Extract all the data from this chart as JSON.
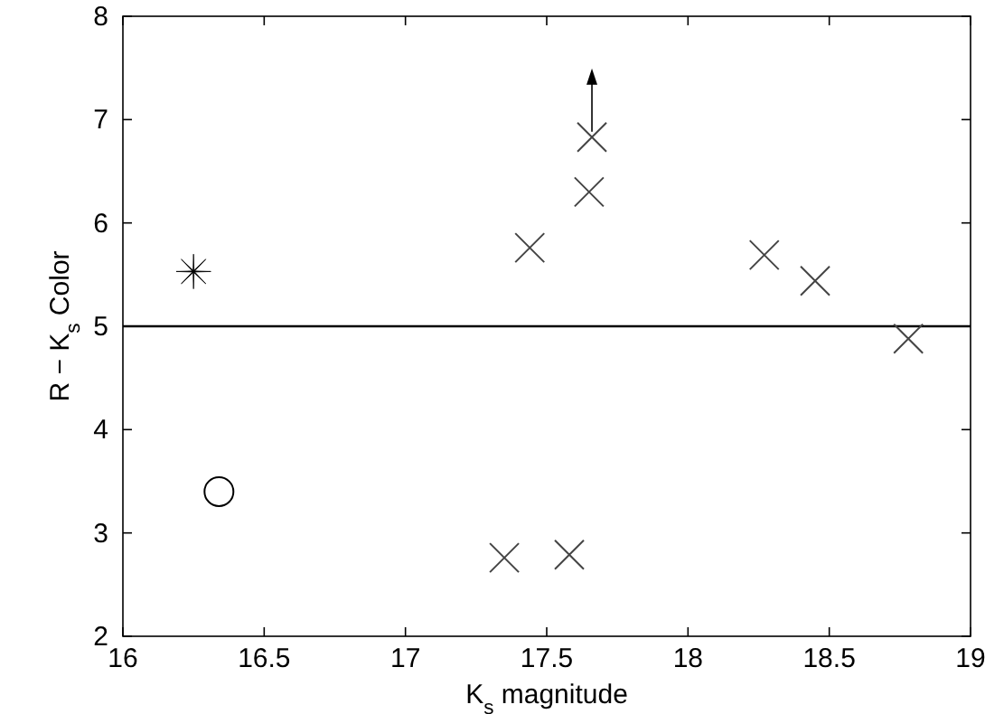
{
  "chart_data": {
    "type": "scatter",
    "xlabel": "K$_{s}$ magnitude",
    "ylabel": "R − K$_{s}$ Color",
    "xlim": [
      16,
      19
    ],
    "xticks": [
      16,
      16.5,
      17,
      17.5,
      18,
      18.5,
      19
    ],
    "ylim": [
      2,
      8
    ],
    "yticks": [
      2,
      3,
      4,
      5,
      6,
      7,
      8
    ],
    "grid": false,
    "ref_lines": [
      {
        "axis": "y",
        "value": 5,
        "color": "#000000"
      }
    ],
    "series": [
      {
        "color": "#000000",
        "marker": "star",
        "x": [
          16.25
        ],
        "values": [
          5.53
        ]
      },
      {
        "color": "#000000",
        "marker": "circle",
        "x": [
          16.34
        ],
        "values": [
          3.4
        ]
      },
      {
        "color": "#444444",
        "marker": "cross",
        "x": [
          17.35,
          17.58,
          17.44,
          17.65,
          17.66,
          18.27,
          18.45,
          18.78
        ],
        "values": [
          2.76,
          2.79,
          5.76,
          6.3,
          6.83,
          5.69,
          5.44,
          4.88
        ]
      }
    ]
  }
}
